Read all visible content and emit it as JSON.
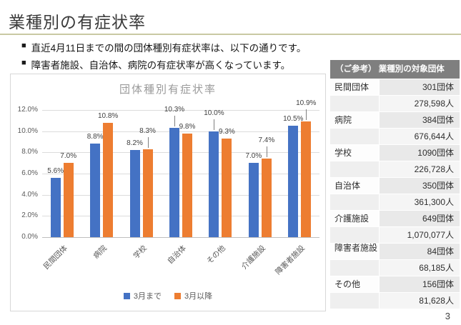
{
  "slide": {
    "title": "業種別の有症状率",
    "bullets": [
      "直近4月11日までの間の団体種別有症状率は、以下の通りです。",
      "障害者施設、自治体、病院の有症状率が高くなっています。"
    ],
    "page_number": "3"
  },
  "colors": {
    "series_march": "#4472C4",
    "series_after_march": "#ED7D31",
    "title_rule": "#C9C9A3",
    "table_header_bg": "#7F7F7F"
  },
  "chart_data": {
    "type": "bar",
    "title": "団体種別有症状率",
    "categories": [
      "民間団体",
      "病院",
      "学校",
      "自治体",
      "その他",
      "介護施設",
      "障害者施設"
    ],
    "series": [
      {
        "name": "3月まで",
        "color": "#4472C4",
        "values": [
          5.6,
          8.8,
          8.2,
          10.3,
          10.0,
          7.0,
          10.5
        ]
      },
      {
        "name": "3月以降",
        "color": "#ED7D31",
        "values": [
          7.0,
          10.8,
          8.3,
          9.8,
          9.3,
          7.4,
          10.9
        ]
      }
    ],
    "ylim": [
      0,
      12
    ],
    "ytick_step": 2,
    "ytick_suffix": "%",
    "grid": true,
    "legend_position": "bottom",
    "raised_labels": [
      [
        3,
        4
      ],
      [
        2,
        5,
        6
      ]
    ]
  },
  "table": {
    "header": "（ご参考） 業種別の対象団体",
    "rows": [
      {
        "name": "民間団体",
        "groups": "301団体",
        "people": "278,598人"
      },
      {
        "name": "病院",
        "groups": "384団体",
        "people": "676,644人"
      },
      {
        "name": "学校",
        "groups": "1090団体",
        "people": "226,728人"
      },
      {
        "name": "自治体",
        "groups": "350団体",
        "people": "361,300人"
      },
      {
        "name": "介護施設",
        "groups": "649団体",
        "people": "1,070,077人"
      },
      {
        "name": "障害者施設",
        "groups": "84団体",
        "people": "68,185人"
      },
      {
        "name": "その他",
        "groups": "156団体",
        "people": "81,628人"
      }
    ]
  }
}
